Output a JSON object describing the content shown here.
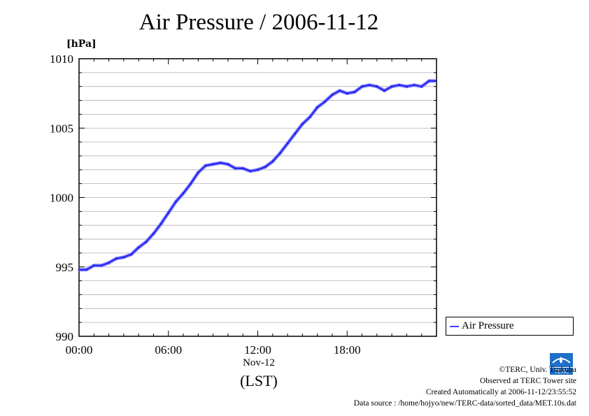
{
  "title": "Air Pressure / 2006-11-12",
  "chart_data": {
    "type": "line",
    "title": "Air Pressure / 2006-11-12",
    "ylabel": "[hPa]",
    "xlabel": "(LST)",
    "x_date_label": "Nov-12",
    "ylim": [
      990,
      1010
    ],
    "xlim_hours": [
      0,
      24
    ],
    "y_ticks": [
      "1010",
      "1005",
      "1000",
      "995",
      "990"
    ],
    "x_ticks": [
      "00:00",
      "06:00",
      "12:00",
      "18:00"
    ],
    "grid": true,
    "legend_position": "bottom-right-outside",
    "series": [
      {
        "name": "Air Pressure",
        "color": "#4040ff",
        "x_hours": [
          0,
          0.5,
          1,
          1.5,
          2,
          2.5,
          3,
          3.5,
          4,
          4.5,
          5,
          5.5,
          6,
          6.5,
          7,
          7.5,
          8,
          8.5,
          9,
          9.5,
          10,
          10.5,
          11,
          11.5,
          12,
          12.5,
          13,
          13.5,
          14,
          14.5,
          15,
          15.5,
          16,
          16.5,
          17,
          17.5,
          18,
          18.5,
          19,
          19.5,
          20,
          20.5,
          21,
          21.5,
          22,
          22.5,
          23,
          23.5,
          23.9
        ],
        "values": [
          994.8,
          994.8,
          995.1,
          995.1,
          995.3,
          995.6,
          995.7,
          995.9,
          996.4,
          996.8,
          997.4,
          998.1,
          998.9,
          999.7,
          1000.3,
          1001.0,
          1001.8,
          1002.3,
          1002.4,
          1002.5,
          1002.4,
          1002.1,
          1002.1,
          1001.9,
          1002.0,
          1002.2,
          1002.6,
          1003.2,
          1003.9,
          1004.6,
          1005.3,
          1005.8,
          1006.5,
          1006.9,
          1007.4,
          1007.7,
          1007.5,
          1007.6,
          1008.0,
          1008.1,
          1008.0,
          1007.7,
          1008.0,
          1008.1,
          1008.0,
          1008.1,
          1008.0,
          1008.4,
          1008.4
        ]
      }
    ]
  },
  "legend": {
    "label": "Air Pressure"
  },
  "footer": {
    "copyright": "©TERC, Univ. Tsukuba",
    "site": "Observed at TERC Tower site",
    "created": "Created Automatically at 2006-11-12/23:55:52",
    "source": "Data source : /home/hojyo/new/TERC-data/sorted_data/MET.10s.dat"
  },
  "logo_text": "TERC"
}
